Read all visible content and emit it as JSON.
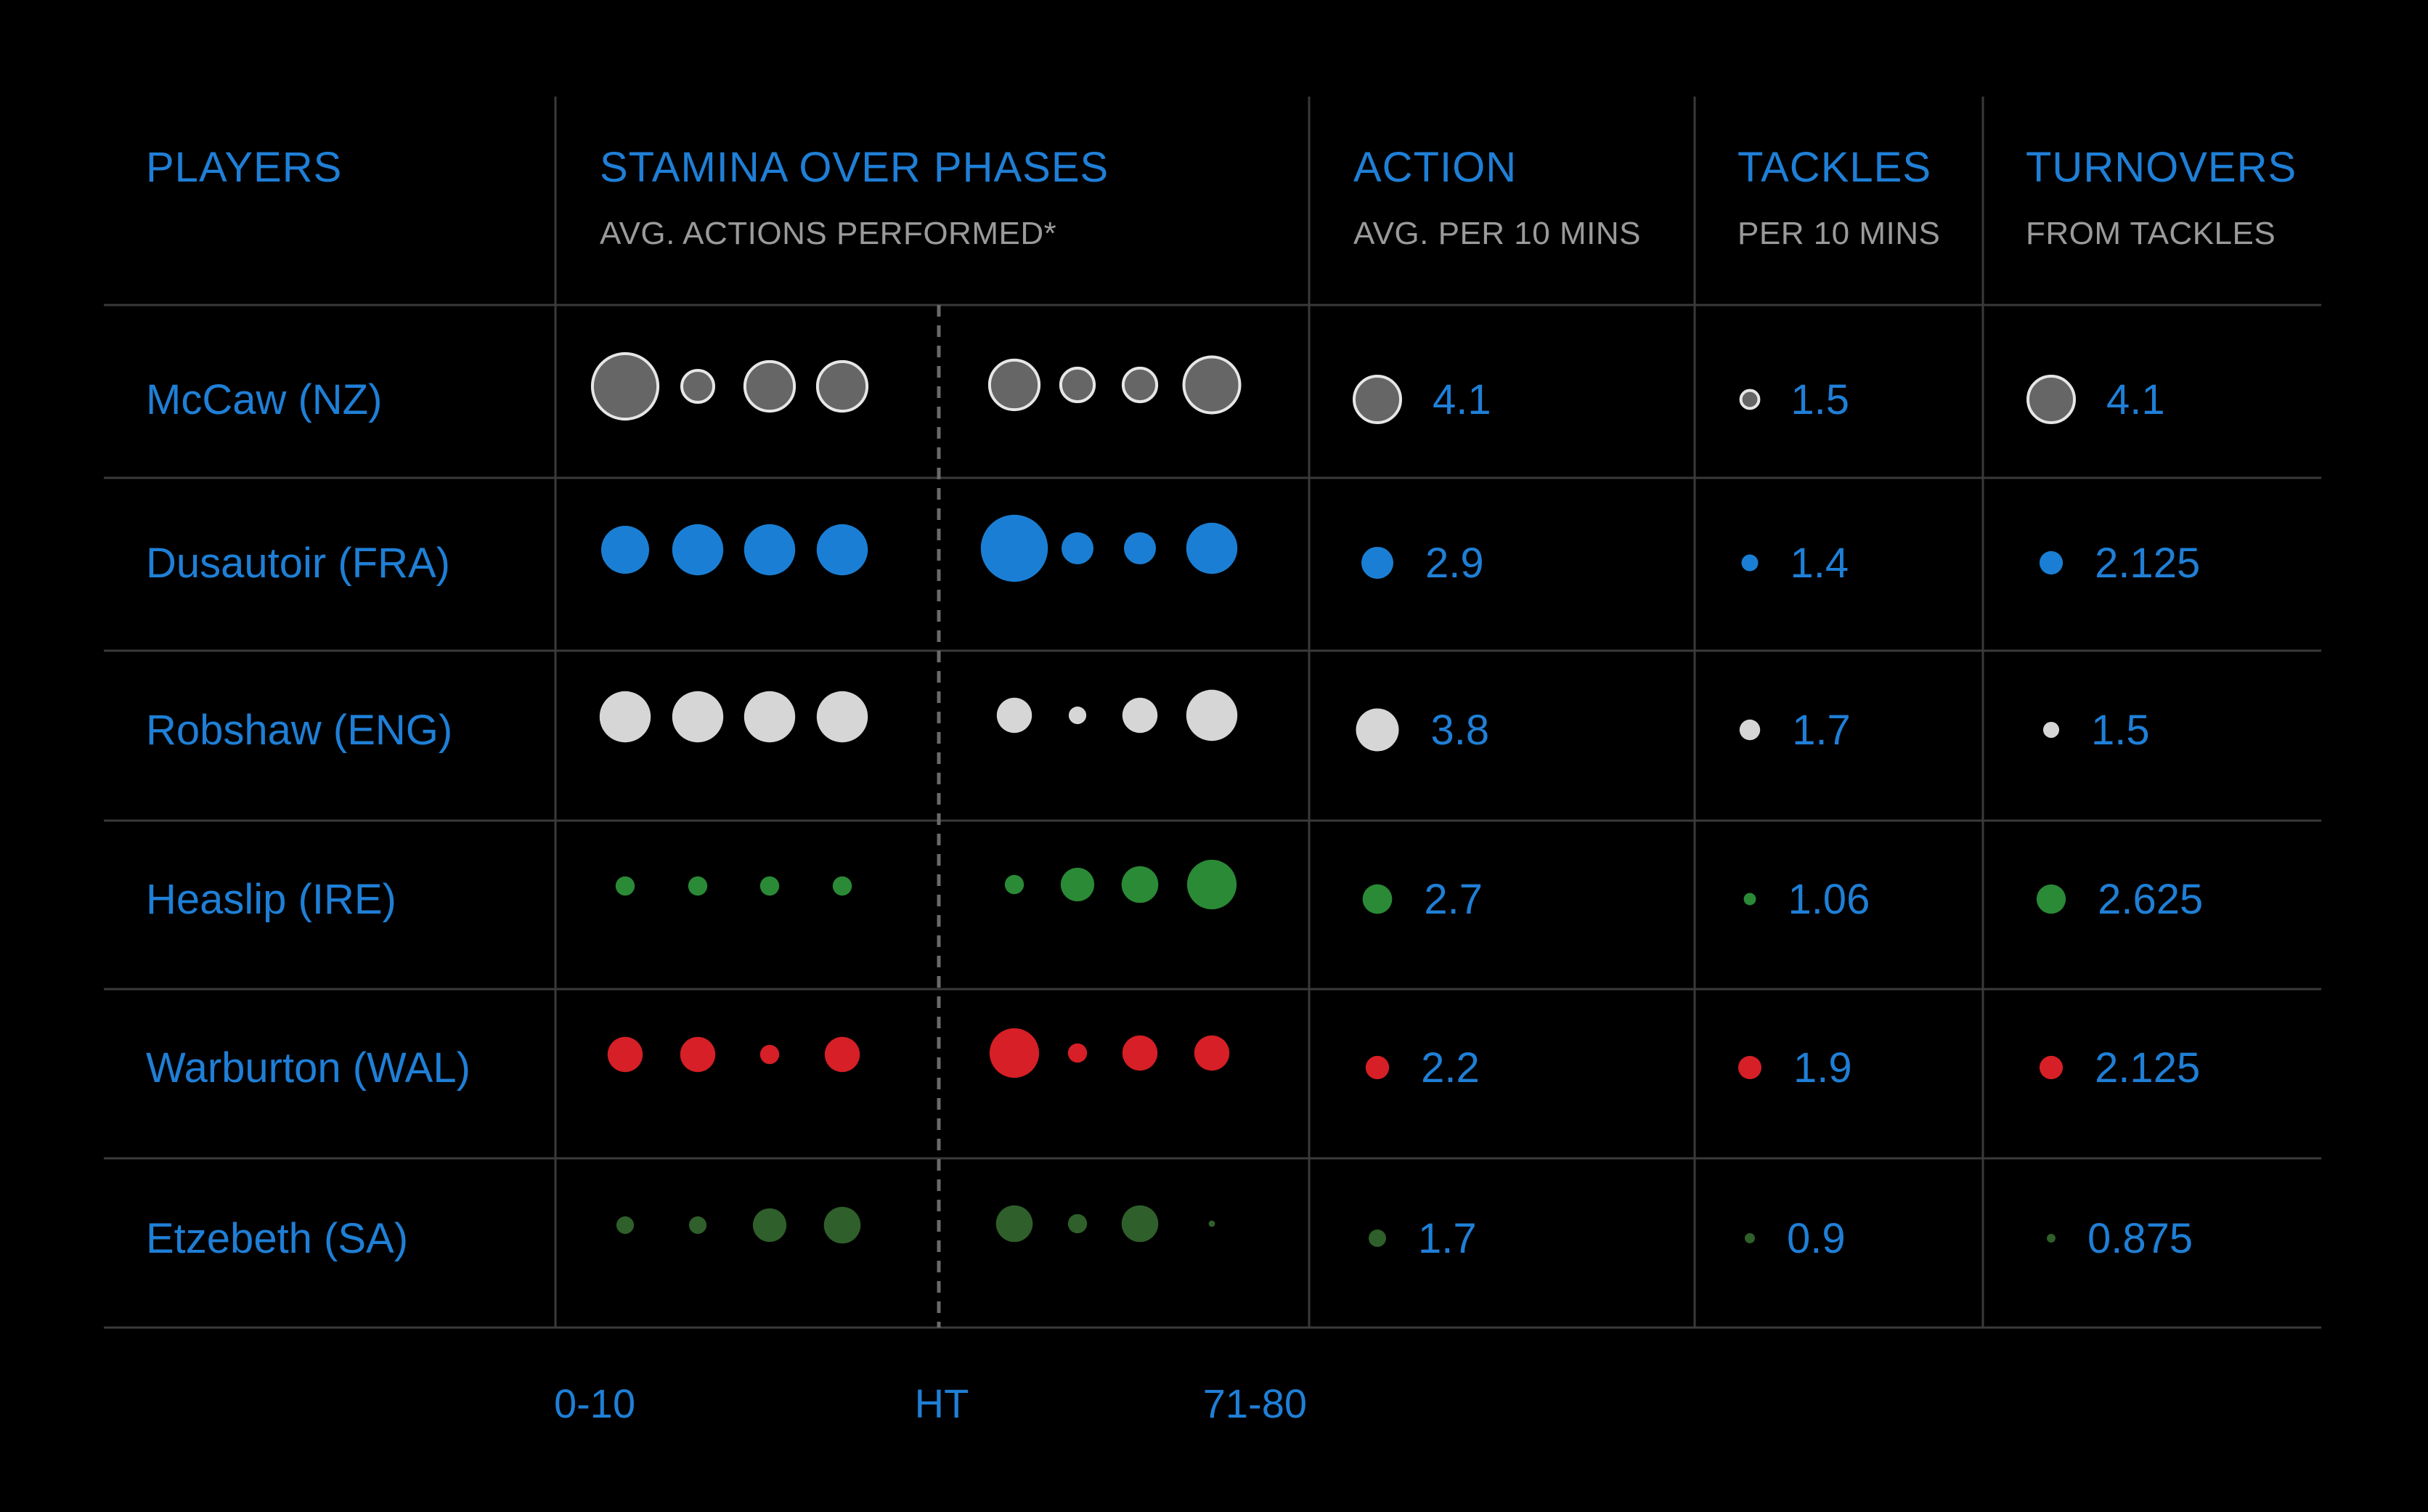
{
  "chart_data": {
    "type": "table",
    "headers": {
      "players": {
        "title": "PLAYERS"
      },
      "stamina": {
        "title": "STAMINA OVER PHASES",
        "subtitle": "AVG. ACTIONS PERFORMED*"
      },
      "action": {
        "title": "ACTION",
        "subtitle": "AVG. PER 10 MINS"
      },
      "tackles": {
        "title": "TACKLES",
        "subtitle": "PER 10 MINS"
      },
      "turnovers": {
        "title": "TURNOVERS",
        "subtitle": "FROM TACKLES"
      }
    },
    "phase_axis": {
      "start": "0-10",
      "mid": "HT",
      "end": "71-80"
    },
    "players": [
      {
        "name": "McCaw (NZ)",
        "color": "#666666",
        "stroke": "#e6e6e6",
        "stamina": [
          4.1,
          2.0,
          3.1,
          3.1,
          3.1,
          2.1,
          2.1,
          3.5
        ],
        "action": "4.1",
        "tackles": "1.5",
        "turnovers": "4.1"
      },
      {
        "name": "Dusautoir (FRA)",
        "color": "#1a7fd4",
        "stroke": "",
        "stamina": [
          3.0,
          3.2,
          3.2,
          3.2,
          4.2,
          2.0,
          2.0,
          3.2
        ],
        "action": "2.9",
        "tackles": "1.4",
        "turnovers": "2.125"
      },
      {
        "name": "Robshaw (ENG)",
        "color": "#d6d6d6",
        "stroke": "",
        "stamina": [
          3.2,
          3.2,
          3.2,
          3.2,
          2.2,
          1.1,
          2.2,
          3.2
        ],
        "action": "3.8",
        "tackles": "1.7",
        "turnovers": "1.5"
      },
      {
        "name": "Heaslip (IRE)",
        "color": "#2a8a36",
        "stroke": "",
        "stamina": [
          1.2,
          1.2,
          1.2,
          1.2,
          1.2,
          2.1,
          2.3,
          3.1
        ],
        "action": "2.7",
        "tackles": "1.06",
        "turnovers": "2.625"
      },
      {
        "name": "Warburton (WAL)",
        "color": "#d61f26",
        "stroke": "",
        "stamina": [
          2.2,
          2.2,
          1.2,
          2.2,
          3.1,
          1.2,
          2.2,
          2.2
        ],
        "action": "2.2",
        "tackles": "1.9",
        "turnovers": "2.125"
      },
      {
        "name": "Etzebeth (SA)",
        "color": "#2f5f2a",
        "stroke": "",
        "stamina": [
          1.1,
          1.1,
          2.1,
          2.3,
          2.3,
          1.2,
          2.3,
          0.4
        ],
        "action": "1.7",
        "tackles": "0.9",
        "turnovers": "0.875"
      }
    ]
  }
}
